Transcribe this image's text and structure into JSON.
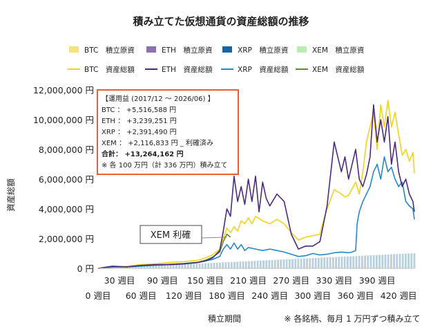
{
  "chart_data": {
    "type": "line",
    "title": "積み立てた仮想通貨の資産総額の推移",
    "xlabel": "積立期間",
    "ylabel": "資産総額",
    "note": "※ 各銘柄、毎月 1 万円ずつ積み立て",
    "ylim": [
      0,
      12000000
    ],
    "xlim": [
      0,
      442
    ],
    "y_ticks": [
      {
        "v": 0,
        "label": "0 円"
      },
      {
        "v": 2000000,
        "label": "2,000,000 円"
      },
      {
        "v": 4000000,
        "label": "4,000,000 円"
      },
      {
        "v": 6000000,
        "label": "6,000,000 円"
      },
      {
        "v": 8000000,
        "label": "8,000,000 円"
      },
      {
        "v": 10000000,
        "label": "10,000,000 円"
      },
      {
        "v": 12000000,
        "label": "12,000,000 円"
      }
    ],
    "x_ticks_row1": [
      {
        "v": 30,
        "label": "30 週目"
      },
      {
        "v": 90,
        "label": "90 週目"
      },
      {
        "v": 150,
        "label": "150 週目"
      },
      {
        "v": 210,
        "label": "210 週目"
      },
      {
        "v": 270,
        "label": "270 週目"
      },
      {
        "v": 330,
        "label": "330 週目"
      },
      {
        "v": 390,
        "label": "390 週目"
      }
    ],
    "x_ticks_row2": [
      {
        "v": 0,
        "label": "0 週目"
      },
      {
        "v": 60,
        "label": "60 週目"
      },
      {
        "v": 120,
        "label": "120 週目"
      },
      {
        "v": 180,
        "label": "180 週目"
      },
      {
        "v": 240,
        "label": "240 週目"
      },
      {
        "v": 300,
        "label": "300 週目"
      },
      {
        "v": 360,
        "label": "360 週目"
      },
      {
        "v": 420,
        "label": "420 週目"
      }
    ],
    "legend": [
      {
        "label": "BTC　積立原資",
        "color": "#f5e27a",
        "kind": "bar"
      },
      {
        "label": "ETH　積立原資",
        "color": "#8e6fb5",
        "kind": "bar"
      },
      {
        "label": "XRP　積立原資",
        "color": "#1565a8",
        "kind": "bar"
      },
      {
        "label": "XEM　積立原資",
        "color": "#b8ecb0",
        "kind": "bar"
      },
      {
        "label": "BTC　資産総額",
        "color": "#f2d21b",
        "kind": "line"
      },
      {
        "label": "ETH　資産総額",
        "color": "#4b2a7a",
        "kind": "line"
      },
      {
        "label": "XRP　資産総額",
        "color": "#2288c9",
        "kind": "line"
      },
      {
        "label": "XEM　資産総額",
        "color": "#5f8a2a",
        "kind": "line"
      }
    ],
    "principal": {
      "name": "積立原資",
      "x": [
        0,
        442
      ],
      "y": [
        0,
        1020000
      ]
    },
    "series": [
      {
        "name": "BTC　資産総額",
        "color": "#f2d21b",
        "x": [
          0,
          20,
          40,
          60,
          80,
          100,
          120,
          140,
          150,
          160,
          170,
          175,
          180,
          185,
          190,
          195,
          200,
          205,
          210,
          215,
          220,
          230,
          240,
          250,
          260,
          270,
          280,
          290,
          300,
          310,
          315,
          320,
          330,
          340,
          345,
          350,
          360,
          365,
          370,
          375,
          380,
          385,
          390,
          395,
          400,
          405,
          410,
          415,
          420,
          425,
          430,
          435,
          440,
          442
        ],
        "y": [
          0,
          100000,
          150000,
          250000,
          300000,
          400000,
          450000,
          550000,
          700000,
          900000,
          1300000,
          2000000,
          2700000,
          2400000,
          2800000,
          2500000,
          3200000,
          3000000,
          3400000,
          3000000,
          3500000,
          3200000,
          3000000,
          3300000,
          3000000,
          2400000,
          1900000,
          2100000,
          2200000,
          2300000,
          3200000,
          4000000,
          5300000,
          5000000,
          4800000,
          4900000,
          5800000,
          5000000,
          6500000,
          8500000,
          9500000,
          10500000,
          8000000,
          11000000,
          9500000,
          11300000,
          9500000,
          10500000,
          9000000,
          7600000,
          8000000,
          7200000,
          7800000,
          6400000
        ]
      },
      {
        "name": "ETH　資産総額",
        "color": "#4b2a7a",
        "x": [
          0,
          20,
          40,
          60,
          80,
          100,
          120,
          140,
          150,
          160,
          170,
          175,
          180,
          185,
          190,
          195,
          200,
          205,
          210,
          215,
          220,
          225,
          230,
          235,
          240,
          250,
          260,
          270,
          280,
          290,
          300,
          310,
          315,
          320,
          330,
          340,
          345,
          350,
          360,
          365,
          370,
          375,
          380,
          385,
          390,
          395,
          400,
          405,
          410,
          415,
          420,
          425,
          430,
          435,
          440,
          442
        ],
        "y": [
          0,
          150000,
          100000,
          200000,
          250000,
          250000,
          300000,
          400000,
          500000,
          700000,
          1200000,
          2500000,
          4000000,
          3500000,
          6200000,
          4500000,
          5500000,
          4300000,
          6000000,
          4500000,
          6200000,
          3800000,
          5800000,
          4700000,
          4200000,
          5000000,
          4500000,
          2300000,
          1300000,
          1500000,
          1500000,
          1800000,
          3000000,
          4200000,
          8500000,
          6500000,
          7500000,
          6000000,
          8000000,
          6000000,
          5500000,
          6300000,
          7500000,
          11000000,
          8500000,
          10000000,
          8500000,
          10200000,
          7000000,
          8500000,
          6500000,
          5500000,
          6000000,
          5000000,
          4500000,
          3800000
        ]
      },
      {
        "name": "XRP　資産総額",
        "color": "#2288c9",
        "x": [
          0,
          20,
          40,
          60,
          80,
          100,
          120,
          140,
          150,
          160,
          170,
          175,
          180,
          185,
          190,
          195,
          200,
          205,
          210,
          220,
          230,
          240,
          250,
          260,
          270,
          280,
          290,
          300,
          310,
          320,
          330,
          340,
          350,
          355,
          360,
          362,
          365,
          370,
          380,
          385,
          390,
          395,
          400,
          405,
          410,
          415,
          420,
          425,
          430,
          435,
          440,
          442
        ],
        "y": [
          0,
          100000,
          100000,
          150000,
          200000,
          250000,
          300000,
          400000,
          500000,
          600000,
          800000,
          1300000,
          1600000,
          1300000,
          1700000,
          1300000,
          1600000,
          1200000,
          1400000,
          1300000,
          1200000,
          1300000,
          1200000,
          1100000,
          950000,
          800000,
          850000,
          1000000,
          900000,
          950000,
          1050000,
          1100000,
          1050000,
          1100000,
          1200000,
          3000000,
          3800000,
          4500000,
          5500000,
          6500000,
          7000000,
          6000000,
          7500000,
          6500000,
          6800000,
          6000000,
          5500000,
          5800000,
          4500000,
          4200000,
          4000000,
          3300000
        ]
      },
      {
        "name": "XEM　資産総額",
        "color": "#5f8a2a",
        "x": [
          0,
          20,
          40,
          60,
          80,
          100,
          120,
          140,
          150,
          160,
          170,
          175,
          180,
          185
        ],
        "y": [
          0,
          80000,
          120000,
          180000,
          220000,
          280000,
          330000,
          420000,
          550000,
          750000,
          1100000,
          1800000,
          2300000,
          2100000
        ]
      }
    ],
    "annotation": {
      "label": "XEM 利確",
      "x": 180,
      "y": 2100000
    },
    "info_box": {
      "line1": "【運用益 (2017/12 ～ 2026/06) 】",
      "line2": "BTC ： +5,516,588 円",
      "line3": "ETH ： +3,239,251 円",
      "line4": "XRP ： +2,391,490 円",
      "line5": "XEM ： +2,116,833 円 _ 利確済み",
      "line6": "合計： +13,264,162 円",
      "line7": "※ 各 100 万円（計 336 万円）積み立て"
    },
    "grid": false,
    "legend_position": "top"
  }
}
